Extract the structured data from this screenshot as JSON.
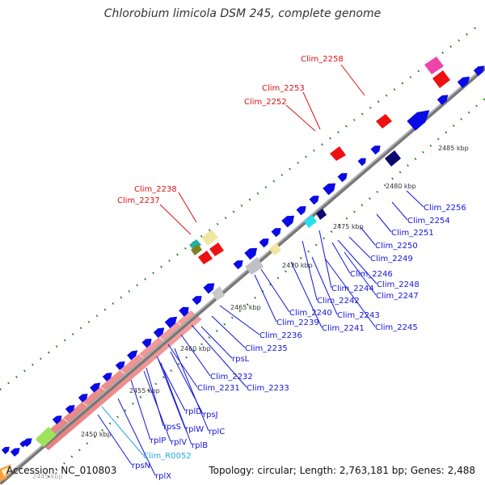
{
  "title": "Chlorobium limicola DSM 245, complete genome",
  "footer": {
    "accession": "Accession: NC_010803",
    "summary": "Topology: circular; Length: 2,763,181 bp; Genes: 2,488"
  },
  "colors": {
    "backbone": "#8c8c8c",
    "cds": "#0a0ae6",
    "rrna_red": "#ee1111",
    "label_red": "#dd1111",
    "label_blue": "#1414dd",
    "label_cyan": "#22a8e8",
    "tick": "#1f7a1f"
  },
  "ruler": [
    {
      "label": "2445 kbp"
    },
    {
      "label": "2450 kbp"
    },
    {
      "label": "2455 kbp"
    },
    {
      "label": "2460 kbp"
    },
    {
      "label": "2465 kbp"
    },
    {
      "label": "2470 kbp"
    },
    {
      "label": "2475 kbp"
    },
    {
      "label": "2480 kbp"
    },
    {
      "label": "2485 kbp"
    }
  ],
  "upper_labels": [
    {
      "text": "Clim_2258",
      "color": "red"
    },
    {
      "text": "Clim_2253",
      "color": "red"
    },
    {
      "text": "Clim_2252",
      "color": "red"
    },
    {
      "text": "Clim_2238",
      "color": "red"
    },
    {
      "text": "Clim_2237",
      "color": "red"
    }
  ],
  "lower_labels": [
    {
      "text": "Clim_2256",
      "color": "blue"
    },
    {
      "text": "Clim_2254",
      "color": "blue"
    },
    {
      "text": "Clim_2251",
      "color": "blue"
    },
    {
      "text": "Clim_2250",
      "color": "blue"
    },
    {
      "text": "Clim_2249",
      "color": "blue"
    },
    {
      "text": "Clim_2246",
      "color": "blue"
    },
    {
      "text": "Clim_2248",
      "color": "blue"
    },
    {
      "text": "Clim_2244",
      "color": "blue"
    },
    {
      "text": "Clim_2247",
      "color": "blue"
    },
    {
      "text": "Clim_2242",
      "color": "blue"
    },
    {
      "text": "Clim_2240",
      "color": "blue"
    },
    {
      "text": "Clim_2243",
      "color": "blue"
    },
    {
      "text": "Clim_2239",
      "color": "blue"
    },
    {
      "text": "Clim_2241",
      "color": "blue"
    },
    {
      "text": "Clim_2245",
      "color": "blue"
    },
    {
      "text": "Clim_2236",
      "color": "blue"
    },
    {
      "text": "Clim_2235",
      "color": "blue"
    },
    {
      "text": "rpsL",
      "color": "blue"
    },
    {
      "text": "Clim_2232",
      "color": "blue"
    },
    {
      "text": "Clim_2231",
      "color": "blue"
    },
    {
      "text": "Clim_2233",
      "color": "blue"
    },
    {
      "text": "rplD",
      "color": "blue"
    },
    {
      "text": "rpsJ",
      "color": "blue"
    },
    {
      "text": "rpsS",
      "color": "blue"
    },
    {
      "text": "rplW",
      "color": "blue"
    },
    {
      "text": "rplC",
      "color": "blue"
    },
    {
      "text": "rplP",
      "color": "blue"
    },
    {
      "text": "rplV",
      "color": "blue"
    },
    {
      "text": "rplB",
      "color": "blue"
    },
    {
      "text": "Clim_R0052",
      "color": "cyan"
    },
    {
      "text": "rpsN",
      "color": "blue"
    },
    {
      "text": "rplX",
      "color": "blue"
    }
  ]
}
